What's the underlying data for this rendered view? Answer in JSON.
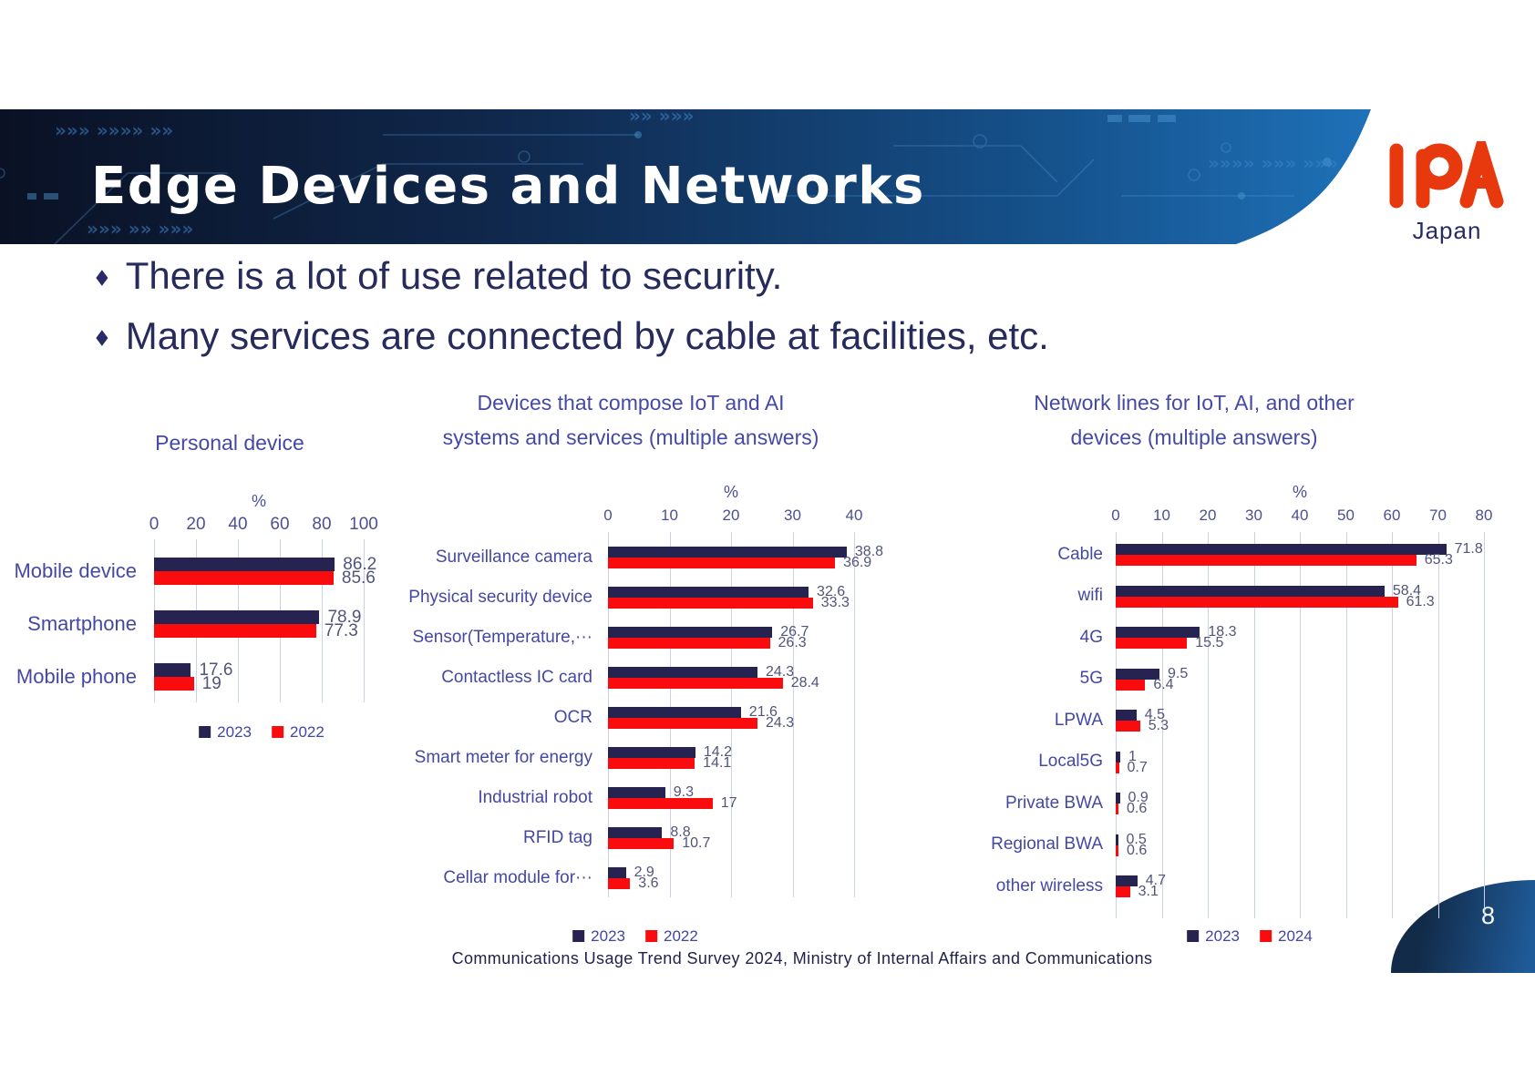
{
  "slide": {
    "title": "Edge Devices and Networks",
    "logo": {
      "text": "IPA",
      "subtext": "Japan"
    },
    "bullets": [
      "There is a lot of use related to security.",
      "Many services are connected by cable at facilities, etc."
    ],
    "caption": "Communications Usage Trend Survey 2024, Ministry of Internal Affairs and Communications",
    "page_number": "8"
  },
  "colors": {
    "navy": "#262350",
    "red": "#f90b0e",
    "accent_text": "#4548a2",
    "value_text": "#51547b",
    "grid": "#ccd1ea",
    "banner_dark": "#0a1124",
    "banner_light": "#1e71b8",
    "logo_red": "#e8380d",
    "dark_text": "#262b5c"
  },
  "chart_data": [
    {
      "id": "personal-device",
      "type": "bar",
      "orientation": "horizontal",
      "title_lines": [
        "Personal device"
      ],
      "unit_label": "%",
      "xlim": [
        0,
        100
      ],
      "axis_ticks": [
        0,
        20,
        40,
        60,
        80,
        100
      ],
      "grid": true,
      "legend_position": "bottom",
      "categories": [
        "Mobile device",
        "Smartphone",
        "Mobile phone"
      ],
      "series": [
        {
          "name": "2023",
          "color_key": "navy",
          "values": [
            86.2,
            78.9,
            17.6
          ]
        },
        {
          "name": "2022",
          "color_key": "red",
          "values": [
            85.6,
            77.3,
            19
          ]
        }
      ]
    },
    {
      "id": "iot-ai-devices",
      "type": "bar",
      "orientation": "horizontal",
      "title_lines": [
        "Devices that compose IoT and AI",
        "systems and services (multiple answers)"
      ],
      "unit_label": "%",
      "xlim": [
        0,
        40
      ],
      "axis_ticks": [
        0,
        10,
        20,
        30,
        40
      ],
      "grid": true,
      "legend_position": "bottom",
      "categories": [
        "Surveillance camera",
        "Physical security device",
        "Sensor(Temperature,···",
        "Contactless IC card",
        "OCR",
        "Smart meter for energy",
        "Industrial robot",
        "RFID tag",
        "Cellar module for···"
      ],
      "series": [
        {
          "name": "2023",
          "color_key": "navy",
          "values": [
            38.8,
            32.6,
            26.7,
            24.3,
            21.6,
            14.2,
            9.3,
            8.8,
            2.9
          ]
        },
        {
          "name": "2022",
          "color_key": "red",
          "values": [
            36.9,
            33.3,
            26.3,
            28.4,
            24.3,
            14.1,
            17,
            10.7,
            3.6
          ]
        }
      ]
    },
    {
      "id": "network-lines",
      "type": "bar",
      "orientation": "horizontal",
      "title_lines": [
        "Network lines for IoT, AI, and other",
        "devices (multiple answers)"
      ],
      "unit_label": "%",
      "xlim": [
        0,
        80
      ],
      "axis_ticks": [
        0,
        10,
        20,
        30,
        40,
        50,
        60,
        70,
        80
      ],
      "grid": true,
      "legend_position": "bottom",
      "categories": [
        "Cable",
        "wifi",
        "4G",
        "5G",
        "LPWA",
        "Local5G",
        "Private BWA",
        "Regional BWA",
        "other wireless"
      ],
      "series": [
        {
          "name": "2023",
          "color_key": "navy",
          "values": [
            71.8,
            58.4,
            18.3,
            9.5,
            4.5,
            1,
            0.9,
            0.5,
            4.7
          ]
        },
        {
          "name": "2024",
          "color_key": "red",
          "values": [
            65.3,
            61.3,
            15.5,
            6.4,
            5.3,
            0.7,
            0.6,
            0.6,
            3.1
          ]
        }
      ]
    }
  ]
}
